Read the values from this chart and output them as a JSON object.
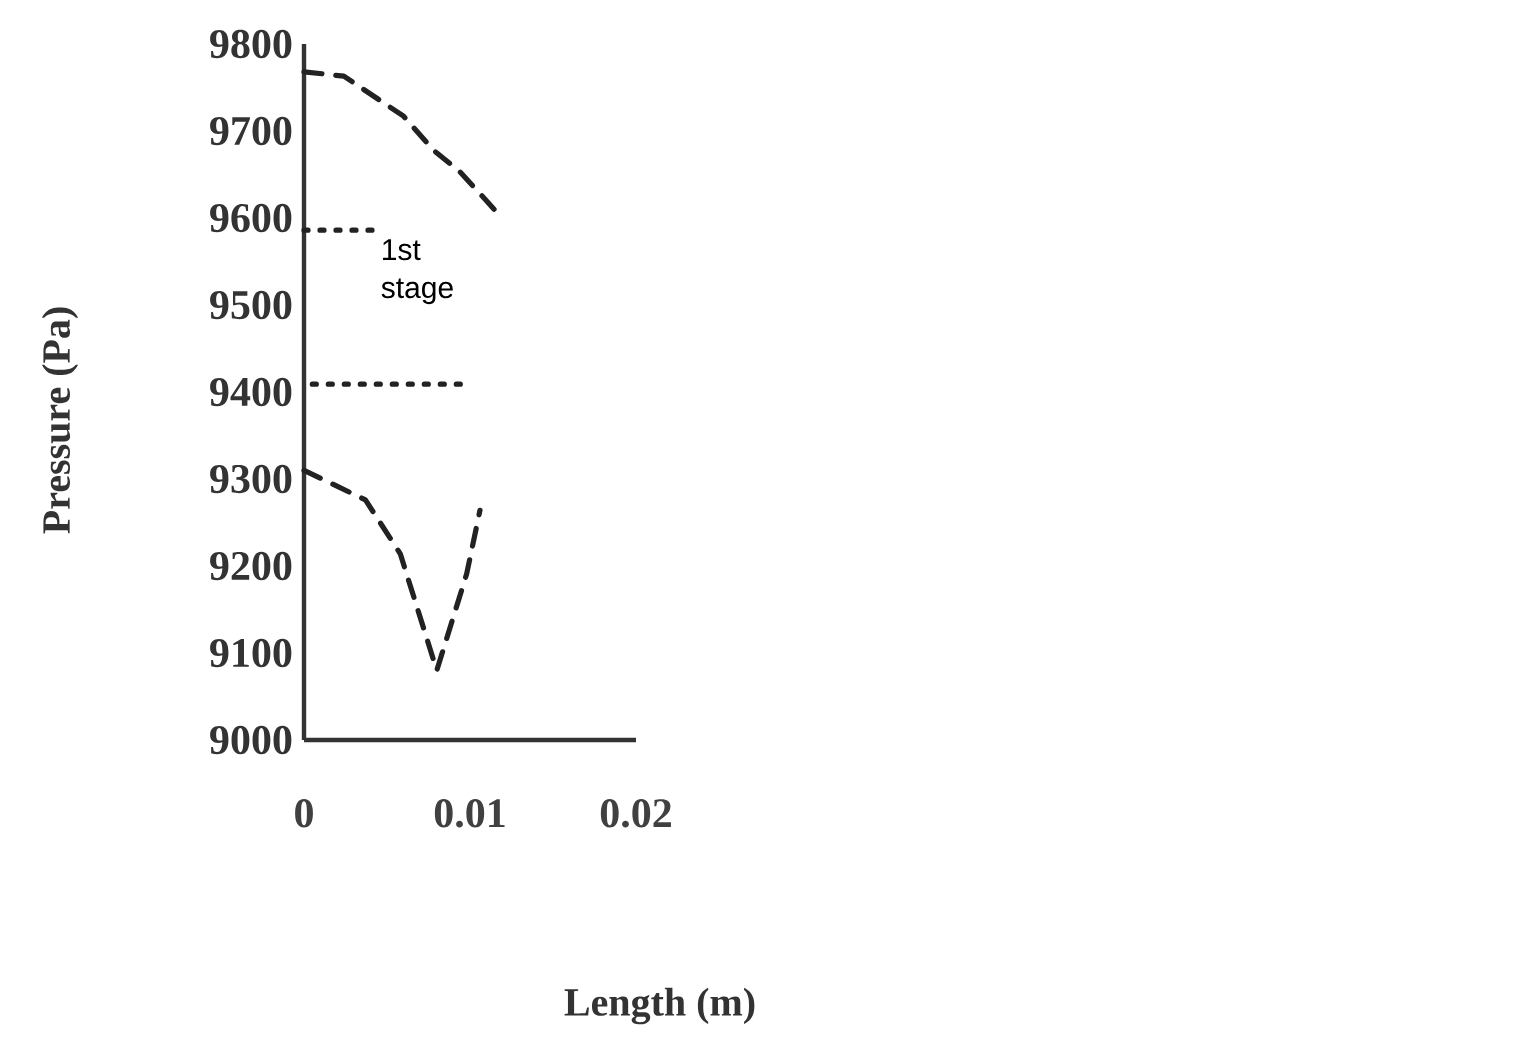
{
  "chart_data": {
    "type": "line",
    "xlabel": "Length (m)",
    "ylabel": "Pressure (Pa)",
    "xlim": [
      0,
      0.02
    ],
    "ylim": [
      9000,
      9800
    ],
    "xticks": [
      0,
      0.01,
      0.02
    ],
    "yticks": [
      9000,
      9100,
      9200,
      9300,
      9400,
      9500,
      9600,
      9700,
      9800
    ],
    "grid": false,
    "annotations": [
      "1st stage"
    ],
    "series": [
      {
        "color": "#222222",
        "line_style": "dashed",
        "x": [
          0,
          0.0024,
          0.006,
          0.0078,
          0.0094,
          0.0116
        ],
        "values": [
          9768,
          9763,
          9717,
          9678,
          9653,
          9607
        ]
      },
      {
        "color": "#222222",
        "line_style": "dashed",
        "x": [
          0,
          0.0037,
          0.0058,
          0.008,
          0.0098,
          0.0106
        ],
        "values": [
          9310,
          9276,
          9214,
          9080,
          9191,
          9264
        ]
      },
      {
        "color": "#222222",
        "line_style": "dotted",
        "x": [
          0,
          0.0045
        ],
        "values": [
          9586,
          9586
        ]
      },
      {
        "color": "#222222",
        "line_style": "dotted",
        "x": [
          0.0005,
          0.0095
        ],
        "values": [
          9409,
          9409
        ]
      }
    ]
  }
}
